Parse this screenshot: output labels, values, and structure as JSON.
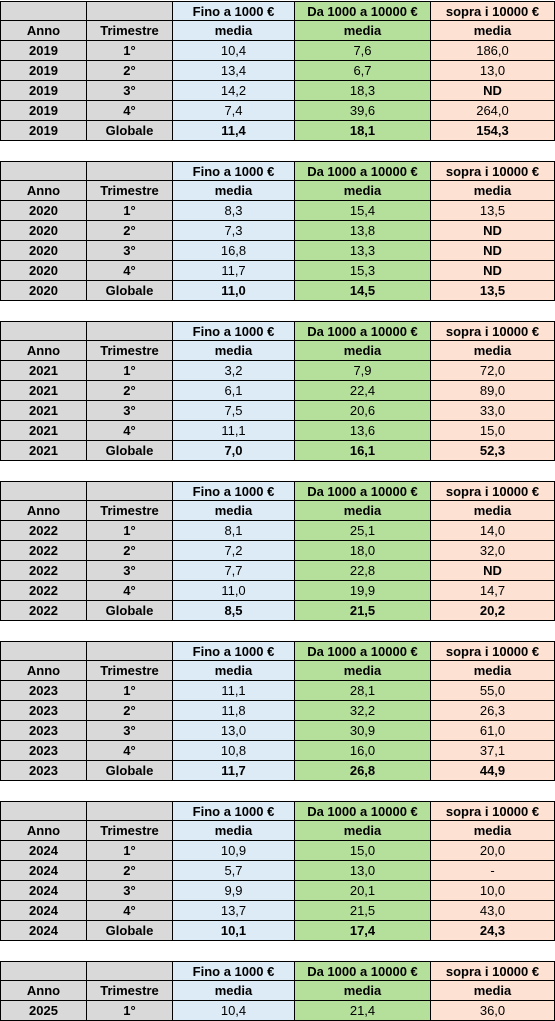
{
  "header": {
    "col_fino": "Fino a 1000 €",
    "col_da": "Da 1000 a 10000 €",
    "col_sopra": "sopra i 10000 €",
    "anno": "Anno",
    "trimestre": "Trimestre",
    "media": "media"
  },
  "blocks": [
    {
      "rows": [
        {
          "anno": "2019",
          "trim": "1°",
          "fino": "10,4",
          "da": "7,6",
          "sopra": "186,0"
        },
        {
          "anno": "2019",
          "trim": "2°",
          "fino": "13,4",
          "da": "6,7",
          "sopra": "13,0"
        },
        {
          "anno": "2019",
          "trim": "3°",
          "fino": "14,2",
          "da": "18,3",
          "sopra": "ND"
        },
        {
          "anno": "2019",
          "trim": "4°",
          "fino": "7,4",
          "da": "39,6",
          "sopra": "264,0"
        },
        {
          "anno": "2019",
          "trim": "Globale",
          "fino": "11,4",
          "da": "18,1",
          "sopra": "154,3"
        }
      ]
    },
    {
      "rows": [
        {
          "anno": "2020",
          "trim": "1°",
          "fino": "8,3",
          "da": "15,4",
          "sopra": "13,5"
        },
        {
          "anno": "2020",
          "trim": "2°",
          "fino": "7,3",
          "da": "13,8",
          "sopra": "ND"
        },
        {
          "anno": "2020",
          "trim": "3°",
          "fino": "16,8",
          "da": "13,3",
          "sopra": "ND"
        },
        {
          "anno": "2020",
          "trim": "4°",
          "fino": "11,7",
          "da": "15,3",
          "sopra": "ND"
        },
        {
          "anno": "2020",
          "trim": "Globale",
          "fino": "11,0",
          "da": "14,5",
          "sopra": "13,5"
        }
      ]
    },
    {
      "rows": [
        {
          "anno": "2021",
          "trim": "1°",
          "fino": "3,2",
          "da": "7,9",
          "sopra": "72,0"
        },
        {
          "anno": "2021",
          "trim": "2°",
          "fino": "6,1",
          "da": "22,4",
          "sopra": "89,0"
        },
        {
          "anno": "2021",
          "trim": "3°",
          "fino": "7,5",
          "da": "20,6",
          "sopra": "33,0"
        },
        {
          "anno": "2021",
          "trim": "4°",
          "fino": "11,1",
          "da": "13,6",
          "sopra": "15,0"
        },
        {
          "anno": "2021",
          "trim": "Globale",
          "fino": "7,0",
          "da": "16,1",
          "sopra": "52,3"
        }
      ]
    },
    {
      "rows": [
        {
          "anno": "2022",
          "trim": "1°",
          "fino": "8,1",
          "da": "25,1",
          "sopra": "14,0"
        },
        {
          "anno": "2022",
          "trim": "2°",
          "fino": "7,2",
          "da": "18,0",
          "sopra": "32,0"
        },
        {
          "anno": "2022",
          "trim": "3°",
          "fino": "7,7",
          "da": "22,8",
          "sopra": "ND"
        },
        {
          "anno": "2022",
          "trim": "4°",
          "fino": "11,0",
          "da": "19,9",
          "sopra": "14,7"
        },
        {
          "anno": "2022",
          "trim": "Globale",
          "fino": "8,5",
          "da": "21,5",
          "sopra": "20,2"
        }
      ]
    },
    {
      "rows": [
        {
          "anno": "2023",
          "trim": "1°",
          "fino": "11,1",
          "da": "28,1",
          "sopra": "55,0"
        },
        {
          "anno": "2023",
          "trim": "2°",
          "fino": "11,8",
          "da": "32,2",
          "sopra": "26,3"
        },
        {
          "anno": "2023",
          "trim": "3°",
          "fino": "13,0",
          "da": "30,9",
          "sopra": "61,0"
        },
        {
          "anno": "2023",
          "trim": "4°",
          "fino": "10,8",
          "da": "16,0",
          "sopra": "37,1"
        },
        {
          "anno": "2023",
          "trim": "Globale",
          "fino": "11,7",
          "da": "26,8",
          "sopra": "44,9"
        }
      ]
    },
    {
      "rows": [
        {
          "anno": "2024",
          "trim": "1°",
          "fino": "10,9",
          "da": "15,0",
          "sopra": "20,0"
        },
        {
          "anno": "2024",
          "trim": "2°",
          "fino": "5,7",
          "da": "13,0",
          "sopra": "-"
        },
        {
          "anno": "2024",
          "trim": "3°",
          "fino": "9,9",
          "da": "20,1",
          "sopra": "10,0"
        },
        {
          "anno": "2024",
          "trim": "4°",
          "fino": "13,7",
          "da": "21,5",
          "sopra": "43,0"
        },
        {
          "anno": "2024",
          "trim": "Globale",
          "fino": "10,1",
          "da": "17,4",
          "sopra": "24,3"
        }
      ]
    },
    {
      "rows": [
        {
          "anno": "2025",
          "trim": "1°",
          "fino": "10,4",
          "da": "21,4",
          "sopra": "36,0"
        }
      ]
    }
  ],
  "colors": {
    "grey": "#d9d9d9",
    "blue": "#ddebf7",
    "green": "#b5e09b",
    "pink": "#fde1d3"
  }
}
